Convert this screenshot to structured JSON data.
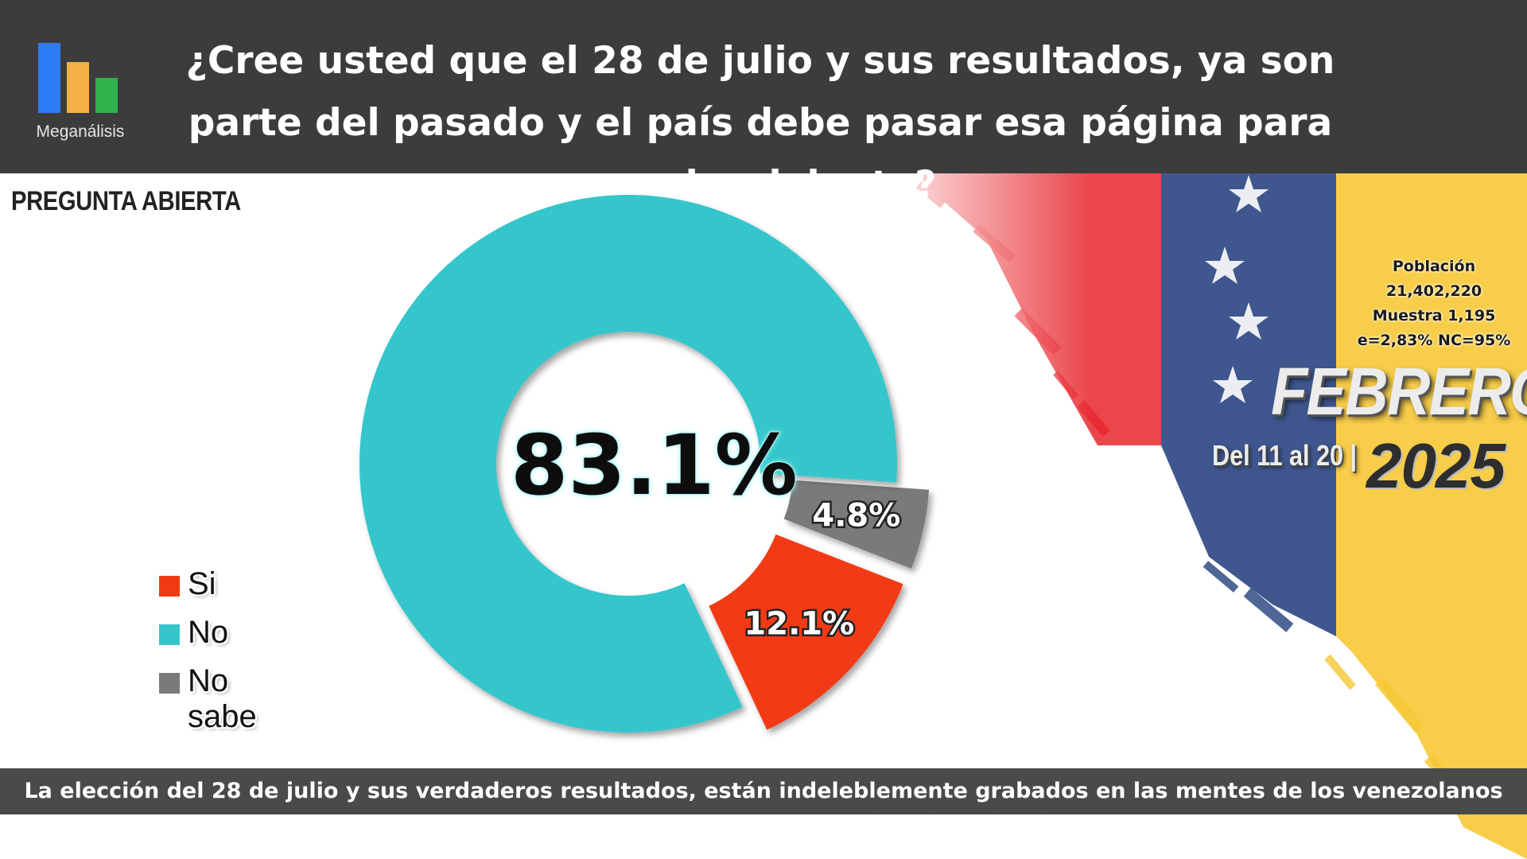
{
  "header": {
    "question": "¿Cree usted que el 28 de julio y sus resultados, ya son parte del pasado y el país debe pasar esa página para seguir adelante?",
    "logo_text": "Meganálisis",
    "logo_colors": [
      "#2e7bf6",
      "#f4b042",
      "#2fb24c"
    ]
  },
  "tag": "PREGUNTA ABIERTA",
  "chart_data": {
    "type": "pie",
    "style": "donut",
    "categories": [
      "Si",
      "No",
      "No sabe"
    ],
    "values": [
      12.1,
      83.1,
      4.8
    ],
    "labels": [
      "12.1%",
      "83.1%",
      "4.8%"
    ],
    "colors": [
      "#f23a12",
      "#35c6cc",
      "#7a7a7a"
    ],
    "legend_placement": "bottom-left"
  },
  "info": {
    "line1": "Población",
    "line2": "21,402,220",
    "line3": "Muestra 1,195",
    "line4": "e=2,83%  NC=95%"
  },
  "period": {
    "month": "FEBRERO",
    "dates": "Del 11 al 20 |",
    "year": "2025"
  },
  "footer": {
    "text": "La elección del 28 de julio y sus verdaderos resultados, están indeleblemente grabados en las mentes de los venezolanos"
  }
}
